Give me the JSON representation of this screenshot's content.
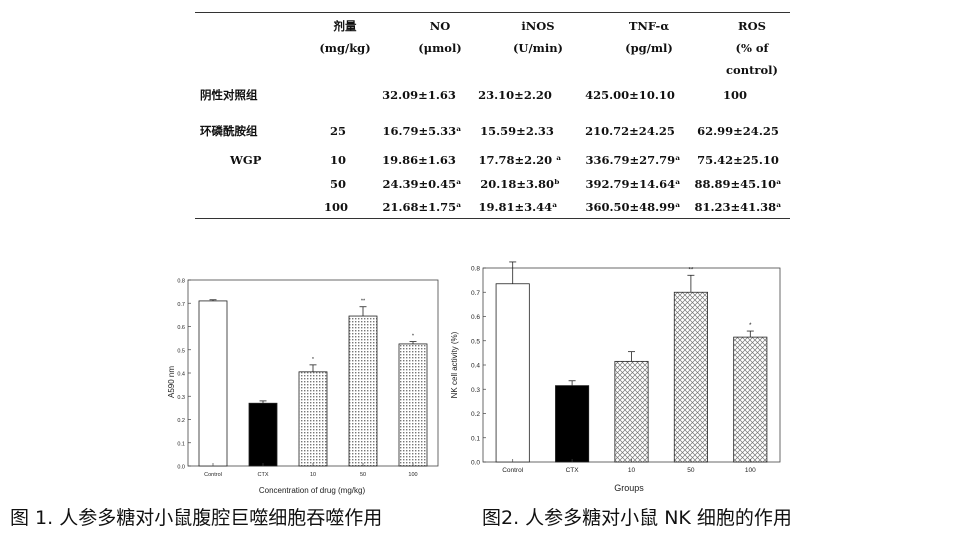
{
  "table": {
    "headers": [
      {
        "title": "剂量",
        "sub": [
          "(mg/kg)"
        ]
      },
      {
        "title": "NO",
        "sub": [
          "(μmol)"
        ]
      },
      {
        "title": "iNOS",
        "sub": [
          "(U/min)"
        ]
      },
      {
        "title": "TNF-α",
        "sub": [
          "(pg/ml)"
        ]
      },
      {
        "title": "ROS",
        "sub": [
          "(% of",
          "control)"
        ]
      }
    ],
    "rows": [
      {
        "group": "阴性对照组",
        "sub": "",
        "dose": "",
        "cells": [
          "32.09±1.63",
          "23.10±2.20",
          "425.00±10.10",
          "100"
        ]
      },
      {
        "group": "环磷酰胺组",
        "sub": "",
        "dose": "25",
        "cells": [
          "16.79±5.33ᵃ",
          "15.59±2.33",
          "210.72±24.25",
          "62.99±24.25"
        ]
      },
      {
        "group": "",
        "sub": "WGP",
        "dose": "10",
        "cells": [
          "19.86±1.63",
          "17.78±2.20 ᵃ",
          "336.79±27.79ᵃ",
          "75.42±25.10"
        ]
      },
      {
        "group": "",
        "sub": "",
        "dose": "50",
        "cells": [
          "24.39±0.45ᵃ",
          "20.18±3.80ᵇ",
          "392.79±14.64ᵃ",
          "88.89±45.10ᵃ"
        ]
      },
      {
        "group": "",
        "sub": "",
        "dose": "100",
        "cells": [
          "21.68±1.75ᵃ",
          "19.81±3.44ᵃ",
          "360.50±48.99ᵃ",
          "81.23±41.38ᵃ"
        ]
      }
    ]
  },
  "chart_data": [
    {
      "type": "bar",
      "title": "",
      "xlabel": "Concentration of drug (mg/kg)",
      "ylabel": "A590 nm",
      "categories": [
        "Control",
        "CTX",
        "10",
        "50",
        "100"
      ],
      "values": [
        0.71,
        0.27,
        0.405,
        0.645,
        0.525
      ],
      "errors": [
        0.005,
        0.01,
        0.03,
        0.04,
        0.01
      ],
      "annotations": [
        "",
        "",
        "*",
        "**",
        "*"
      ],
      "fills": [
        "white",
        "black",
        "dots",
        "dots",
        "dots"
      ],
      "ylim": [
        0,
        0.8
      ],
      "yticks": [
        "0.0",
        "0.1",
        "0.2",
        "0.3",
        "0.4",
        "0.5",
        "0.6",
        "0.7",
        "0.8"
      ],
      "grid": false
    },
    {
      "type": "bar",
      "title": "",
      "xlabel": "Groups",
      "ylabel": "NK cell activity (%)",
      "categories": [
        "Control",
        "CTX",
        "10",
        "50",
        "100"
      ],
      "values": [
        0.735,
        0.315,
        0.415,
        0.7,
        0.515
      ],
      "errors": [
        0.09,
        0.02,
        0.04,
        0.07,
        0.025
      ],
      "annotations": [
        "",
        "",
        "",
        "**",
        "*"
      ],
      "fills": [
        "white",
        "black",
        "cross",
        "cross",
        "cross"
      ],
      "ylim": [
        0,
        0.8
      ],
      "yticks": [
        "0.0",
        "0.1",
        "0.2",
        "0.3",
        "0.4",
        "0.5",
        "0.6",
        "0.7",
        "0.8"
      ],
      "grid": false
    }
  ],
  "captions": {
    "fig1": "图 1. 人参多糖对小鼠腹腔巨噬细胞吞噬作用",
    "fig2": "图2. 人参多糖对小鼠 NK 细胞的作用"
  }
}
